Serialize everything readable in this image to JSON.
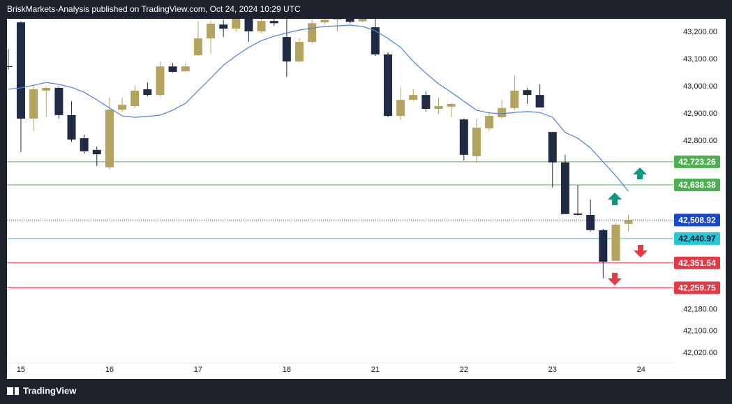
{
  "chart_data": {
    "type": "candlestick",
    "title": "BriskMarkets-Analysis published on TradingView.com, Oct 24, 2024 10:29 UTC",
    "brand": "TradingView",
    "up_color": "#b3a35e",
    "down_color": "#1f2a44",
    "ylim": [
      41984,
      43249
    ],
    "xlim": [
      -0.1,
      52.55
    ],
    "yticks": [
      {
        "value": 43200,
        "label": "43,200.00"
      },
      {
        "value": 43100,
        "label": "43,100.00"
      },
      {
        "value": 43000,
        "label": "43,000.00"
      },
      {
        "value": 42900,
        "label": "42,900.00"
      },
      {
        "value": 42800,
        "label": "42,800.00"
      },
      {
        "value": 42180,
        "label": "42,180.00"
      },
      {
        "value": 42100,
        "label": "42,100.00"
      },
      {
        "value": 42020,
        "label": "42,020.00"
      }
    ],
    "xticks": [
      {
        "value": 1,
        "label": "15"
      },
      {
        "value": 8,
        "label": "16"
      },
      {
        "value": 15,
        "label": "17"
      },
      {
        "value": 22,
        "label": "18"
      },
      {
        "value": 29,
        "label": "21"
      },
      {
        "value": 36,
        "label": "22"
      },
      {
        "value": 43,
        "label": "23"
      },
      {
        "value": 50,
        "label": "24"
      }
    ],
    "open": [
      43075,
      43236,
      42882,
      42985,
      42995,
      42895,
      42810,
      42767,
      42703,
      42915,
      42928,
      42990,
      42969,
      43074,
      43056,
      43115,
      43177,
      43228,
      43213,
      43260,
      43203,
      43241,
      43182,
      43092,
      43164,
      43236,
      43246,
      43252,
      43240,
      43218,
      43118,
      42892,
      42951,
      42969,
      42918,
      42926,
      42879,
      42744,
      42846,
      42887,
      42921,
      42987,
      42969,
      42833,
      42721,
      42533,
      42528,
      42472,
      42359,
      42495
    ],
    "high": [
      43138,
      43240,
      43005,
      43000,
      43000,
      42946,
      42823,
      42779,
      42959,
      42959,
      43003,
      43015,
      43092,
      43087,
      43087,
      43241,
      43241,
      43246,
      43249,
      43270,
      43255,
      43250,
      43254,
      43177,
      43246,
      43256,
      43260,
      43260,
      43262,
      43249,
      43126,
      42997,
      42990,
      42982,
      42959,
      42940,
      42882,
      42882,
      42908,
      42951,
      43041,
      42995,
      43008,
      42833,
      42749,
      42638,
      42585,
      42477,
      42497,
      42528
    ],
    "low": [
      43062,
      42759,
      42836,
      42887,
      42882,
      42797,
      42754,
      42708,
      42695,
      42908,
      42921,
      42964,
      42964,
      43051,
      43054,
      43113,
      43121,
      43182,
      43203,
      43164,
      43197,
      43223,
      43036,
      43090,
      43159,
      43228,
      43203,
      43233,
      43236,
      43113,
      42887,
      42877,
      42946,
      42908,
      42900,
      42887,
      42728,
      42721,
      42836,
      42882,
      42913,
      42936,
      42923,
      42628,
      42531,
      42526,
      42467,
      42295,
      42359,
      42469
    ],
    "close": [
      43072,
      42882,
      42990,
      42995,
      42895,
      42805,
      42762,
      42751,
      42915,
      42933,
      42985,
      42969,
      43074,
      43054,
      43074,
      43177,
      43231,
      43213,
      43249,
      43203,
      43241,
      43233,
      43092,
      43164,
      43233,
      43246,
      43252,
      43238,
      43250,
      43118,
      42892,
      42951,
      42969,
      42918,
      42928,
      42936,
      42749,
      42849,
      42892,
      42921,
      42985,
      42969,
      42923,
      42721,
      42531,
      42528,
      42472,
      42356,
      42492,
      42510
    ],
    "ma": {
      "color": "#4a7fe0",
      "values": [
        42990,
        42995,
        43005,
        43015,
        43008,
        42997,
        42979,
        42951,
        42921,
        42892,
        42887,
        42890,
        42895,
        42913,
        42938,
        42985,
        43031,
        43079,
        43113,
        43144,
        43169,
        43185,
        43197,
        43208,
        43215,
        43221,
        43223,
        43226,
        43221,
        43205,
        43177,
        43144,
        43092,
        43049,
        43010,
        42979,
        42946,
        42913,
        42903,
        42900,
        42905,
        42908,
        42905,
        42887,
        42831,
        42810,
        42774,
        42723,
        42672,
        42615
      ]
    },
    "levels": [
      {
        "value": 42723.26,
        "label": "42,723.26",
        "color": "#4caf50",
        "text_color": "#ffffff"
      },
      {
        "value": 42638.38,
        "label": "42,638.38",
        "color": "#4caf50",
        "text_color": "#ffffff"
      },
      {
        "value": 42508.92,
        "label": "42,508.92",
        "color": "#1848cc",
        "text_color": "#ffffff",
        "dotted": true
      },
      {
        "value": 42440.97,
        "label": "42,440.97",
        "color": "#26c6da",
        "text_color": "#131722"
      },
      {
        "value": 42351.54,
        "label": "42,351.54",
        "color": "#e53946",
        "text_color": "#ffffff"
      },
      {
        "value": 42259.75,
        "label": "42,259.75",
        "color": "#e53946",
        "text_color": "#ffffff"
      }
    ]
  }
}
